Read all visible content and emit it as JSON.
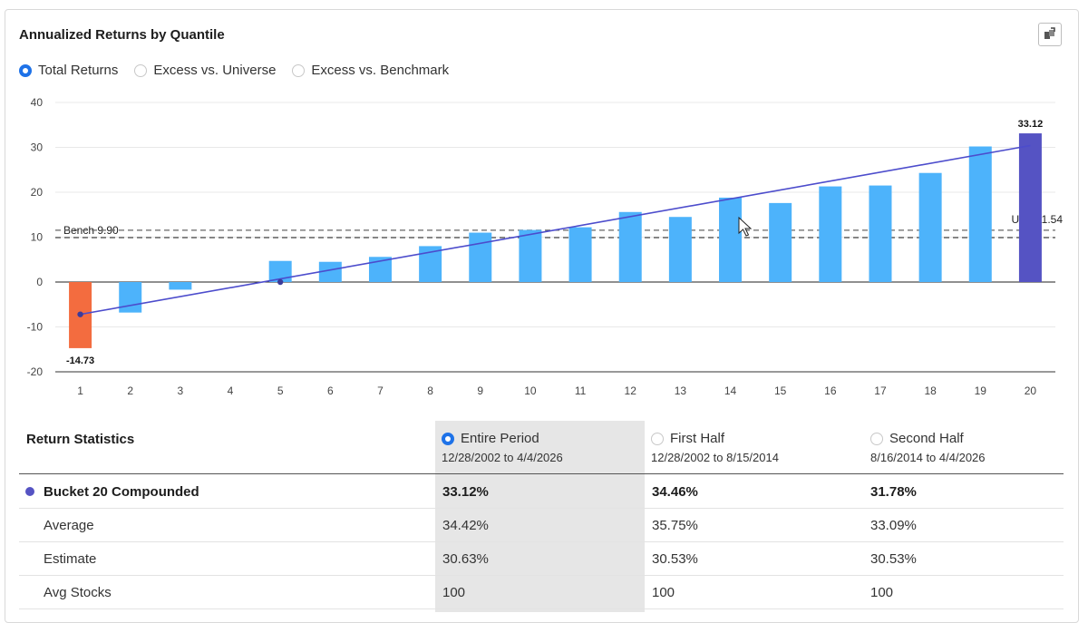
{
  "header": {
    "title": "Annualized Returns by Quantile",
    "export_icon": "export-image-icon"
  },
  "view_options": [
    {
      "label": "Total Returns",
      "selected": true
    },
    {
      "label": "Excess vs. Universe",
      "selected": false
    },
    {
      "label": "Excess vs. Benchmark",
      "selected": false
    }
  ],
  "chart_data": {
    "type": "bar",
    "categories": [
      "1",
      "2",
      "3",
      "4",
      "5",
      "6",
      "7",
      "8",
      "9",
      "10",
      "11",
      "12",
      "13",
      "14",
      "15",
      "16",
      "17",
      "18",
      "19",
      "20"
    ],
    "series": [
      {
        "values": [
          -14.73,
          -6.8,
          -1.7,
          0,
          4.7,
          4.5,
          5.6,
          8.0,
          11.0,
          11.6,
          12.2,
          15.6,
          14.5,
          18.8,
          17.6,
          21.3,
          21.5,
          24.3,
          30.2,
          33.12
        ]
      }
    ],
    "colors": {
      "bar": "#4db3fb",
      "lowest": "#f36c3f",
      "highest": "#5553c3",
      "trend": "#4c4ccc"
    },
    "data_labels": [
      {
        "category": "1",
        "text": "-14.73"
      },
      {
        "category": "20",
        "text": "33.12"
      }
    ],
    "reference_lines": [
      {
        "label": "Bench 9.90",
        "value": 9.9,
        "style": "dashed"
      },
      {
        "label": "Univ 11.54",
        "value": 11.54,
        "style": "dashed"
      }
    ],
    "trend_line": {
      "from": [
        1,
        -7.2
      ],
      "to": [
        20,
        30.4
      ],
      "marker_points": [
        [
          1,
          -7.2
        ],
        [
          5,
          0
        ]
      ]
    },
    "y_ticks": [
      "40",
      "30",
      "20",
      "10",
      "0",
      "-10",
      "-20"
    ],
    "ylim": [
      -20,
      40
    ],
    "grid": true
  },
  "stats": {
    "title": "Return Statistics",
    "periods": [
      {
        "label": "Entire Period",
        "dates": "12/28/2002 to 4/4/2026",
        "selected": true
      },
      {
        "label": "First Half",
        "dates": "12/28/2002 to 8/15/2014",
        "selected": false
      },
      {
        "label": "Second Half",
        "dates": "8/16/2014 to 4/4/2026",
        "selected": false
      }
    ],
    "rows": [
      {
        "name": "Bucket 20 Compounded",
        "values": [
          "33.12%",
          "34.46%",
          "31.78%"
        ]
      },
      {
        "name": "Average",
        "values": [
          "34.42%",
          "35.75%",
          "33.09%"
        ]
      },
      {
        "name": "Estimate",
        "values": [
          "30.63%",
          "30.53%",
          "30.53%"
        ]
      },
      {
        "name": "Avg Stocks",
        "values": [
          "100",
          "100",
          "100"
        ]
      }
    ]
  }
}
